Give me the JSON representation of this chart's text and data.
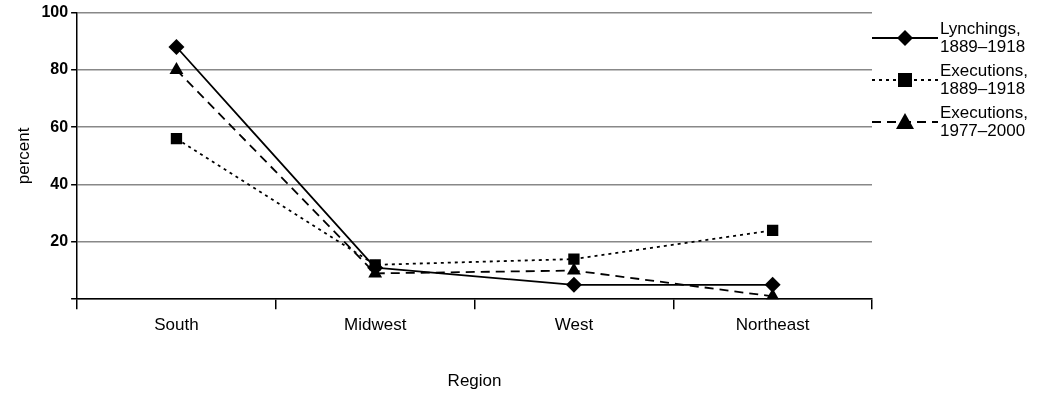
{
  "chart_data": {
    "type": "line",
    "xlabel": "Region",
    "ylabel": "percent",
    "categories": [
      "South",
      "Midwest",
      "West",
      "Northeast"
    ],
    "series": [
      {
        "name": "Lynchings, 1889–1918",
        "color": "#000000",
        "marker": "diamond",
        "line_style": "solid",
        "values": [
          88,
          11,
          5,
          5
        ]
      },
      {
        "name": "Executions, 1889–1918",
        "color": "#000000",
        "marker": "square",
        "line_style": "dotted",
        "values": [
          56,
          12,
          14,
          24
        ]
      },
      {
        "name": "Executions, 1977–2000",
        "color": "#000000",
        "marker": "triangle",
        "line_style": "dashed",
        "values": [
          80,
          9,
          10,
          1
        ]
      }
    ],
    "ylim": [
      0,
      100
    ],
    "yticks": [
      {
        "value": 0,
        "label": null
      },
      20,
      40,
      60,
      80,
      100
    ],
    "grid": "y",
    "legend": "right"
  }
}
